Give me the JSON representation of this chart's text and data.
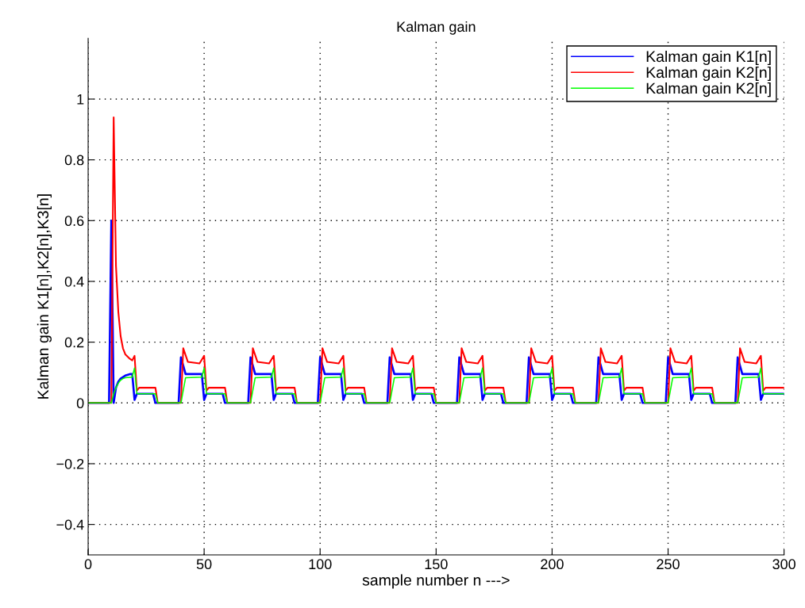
{
  "chart_data": {
    "type": "line",
    "title": "Kalman gain",
    "xlabel": "sample number n --->",
    "ylabel": "Kalman gain K1[n],K2[n],K3[n]",
    "xlim": [
      0,
      300
    ],
    "xticks": [
      0,
      50,
      100,
      150,
      200,
      250,
      300
    ],
    "ylim": [
      -0.5,
      1.2
    ],
    "yticks": [
      -0.4,
      -0.2,
      0,
      0.2,
      0.4,
      0.6,
      0.8,
      1
    ],
    "grid": true,
    "legend": "top right",
    "marker": "none",
    "line_style": "solid",
    "series": [
      {
        "name": "Kalman gain K1[n]",
        "color": "#0000ff",
        "x": [
          0,
          9,
          10,
          11,
          12,
          13,
          14,
          16,
          18,
          19,
          20,
          21,
          28,
          29,
          39,
          40,
          42,
          49,
          50,
          51,
          58,
          59,
          69,
          70,
          72,
          79,
          80,
          81,
          88,
          89,
          99,
          100,
          102,
          109,
          110,
          111,
          118,
          119,
          129,
          130,
          132,
          139,
          140,
          141,
          148,
          149,
          159,
          160,
          162,
          169,
          170,
          171,
          178,
          179,
          189,
          190,
          192,
          199,
          200,
          201,
          208,
          209,
          219,
          220,
          222,
          229,
          230,
          231,
          238,
          239,
          249,
          250,
          252,
          259,
          260,
          261,
          268,
          269,
          279,
          280,
          282,
          289,
          290,
          291,
          300
        ],
        "values": [
          0,
          0,
          0.6,
          0.0,
          0.05,
          0.07,
          0.08,
          0.09,
          0.095,
          0.095,
          0.01,
          0.03,
          0.03,
          0,
          0,
          0.15,
          0.095,
          0.095,
          0.01,
          0.03,
          0.03,
          0,
          0,
          0.15,
          0.095,
          0.095,
          0.01,
          0.03,
          0.03,
          0,
          0,
          0.15,
          0.095,
          0.095,
          0.01,
          0.03,
          0.03,
          0,
          0,
          0.15,
          0.095,
          0.095,
          0.01,
          0.03,
          0.03,
          0,
          0,
          0.15,
          0.095,
          0.095,
          0.01,
          0.03,
          0.03,
          0,
          0,
          0.15,
          0.095,
          0.095,
          0.01,
          0.03,
          0.03,
          0,
          0,
          0.15,
          0.095,
          0.095,
          0.01,
          0.03,
          0.03,
          0,
          0,
          0.15,
          0.095,
          0.095,
          0.01,
          0.03,
          0.03,
          0,
          0,
          0.15,
          0.095,
          0.095,
          0.01,
          0.03,
          0.03
        ]
      },
      {
        "name": "Kalman gain K2[n]",
        "color": "#ff0000",
        "x": [
          0,
          10,
          11,
          12,
          13,
          14,
          15,
          16,
          18,
          19,
          20,
          21,
          22,
          29,
          30,
          40,
          41,
          43,
          48,
          50,
          51,
          52,
          59,
          60,
          70,
          71,
          73,
          78,
          80,
          81,
          82,
          89,
          90,
          100,
          101,
          103,
          108,
          110,
          111,
          112,
          119,
          120,
          130,
          131,
          133,
          138,
          140,
          141,
          142,
          149,
          150,
          160,
          161,
          163,
          168,
          170,
          171,
          172,
          179,
          180,
          190,
          191,
          193,
          198,
          200,
          201,
          202,
          209,
          210,
          220,
          221,
          223,
          228,
          230,
          231,
          232,
          239,
          240,
          250,
          251,
          253,
          258,
          260,
          261,
          262,
          269,
          270,
          280,
          281,
          283,
          288,
          290,
          291,
          292,
          300
        ],
        "values": [
          0,
          0,
          0.94,
          0.45,
          0.3,
          0.22,
          0.18,
          0.16,
          0.145,
          0.14,
          0.155,
          0.04,
          0.05,
          0.05,
          0,
          0,
          0.18,
          0.135,
          0.13,
          0.155,
          0.04,
          0.05,
          0.05,
          0,
          0,
          0.18,
          0.135,
          0.13,
          0.155,
          0.04,
          0.05,
          0.05,
          0,
          0,
          0.18,
          0.135,
          0.13,
          0.155,
          0.04,
          0.05,
          0.05,
          0,
          0,
          0.18,
          0.135,
          0.13,
          0.155,
          0.04,
          0.05,
          0.05,
          0,
          0,
          0.18,
          0.135,
          0.13,
          0.155,
          0.04,
          0.05,
          0.05,
          0,
          0,
          0.18,
          0.135,
          0.13,
          0.155,
          0.04,
          0.05,
          0.05,
          0,
          0,
          0.18,
          0.135,
          0.13,
          0.155,
          0.04,
          0.05,
          0.05,
          0,
          0,
          0.18,
          0.135,
          0.13,
          0.155,
          0.04,
          0.05,
          0.05,
          0,
          0,
          0.18,
          0.135,
          0.13,
          0.155,
          0.04,
          0.05,
          0.05
        ]
      },
      {
        "name": "Kalman gain K2[n]",
        "color": "#00ff00",
        "x": [
          0,
          10,
          11,
          12,
          13,
          14,
          15,
          16,
          19,
          20,
          21,
          29,
          30,
          40,
          42,
          49,
          50,
          51,
          59,
          60,
          70,
          72,
          79,
          80,
          81,
          89,
          90,
          100,
          102,
          109,
          110,
          111,
          119,
          120,
          130,
          132,
          139,
          140,
          141,
          149,
          150,
          160,
          162,
          169,
          170,
          171,
          179,
          180,
          190,
          192,
          199,
          200,
          201,
          209,
          210,
          220,
          222,
          229,
          230,
          231,
          239,
          240,
          250,
          252,
          259,
          260,
          261,
          269,
          270,
          280,
          282,
          289,
          290,
          291,
          300
        ],
        "values": [
          0,
          0,
          0.03,
          0.05,
          0.065,
          0.075,
          0.08,
          0.083,
          0.085,
          0.115,
          0.03,
          0.03,
          0,
          0,
          0.083,
          0.085,
          0.115,
          0.03,
          0.03,
          0,
          0,
          0.083,
          0.085,
          0.115,
          0.03,
          0.03,
          0,
          0,
          0.083,
          0.085,
          0.115,
          0.03,
          0.03,
          0,
          0,
          0.083,
          0.085,
          0.115,
          0.03,
          0.03,
          0,
          0,
          0.083,
          0.085,
          0.115,
          0.03,
          0.03,
          0,
          0,
          0.083,
          0.085,
          0.115,
          0.03,
          0.03,
          0,
          0,
          0.083,
          0.085,
          0.115,
          0.03,
          0.03,
          0,
          0,
          0.083,
          0.085,
          0.115,
          0.03,
          0.03,
          0,
          0,
          0.083,
          0.085,
          0.115,
          0.03,
          0.03
        ]
      }
    ]
  }
}
